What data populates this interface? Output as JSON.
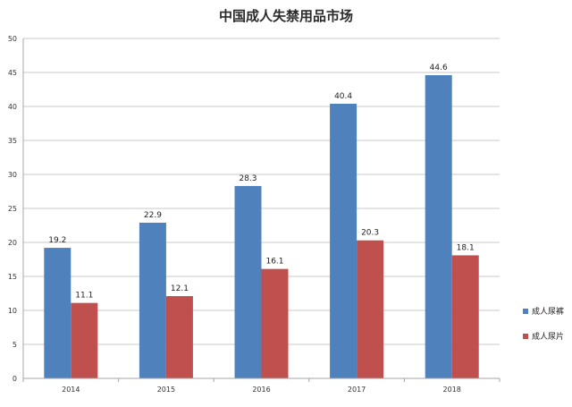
{
  "chart_data": {
    "type": "bar",
    "title": "中国成人失禁用品市场",
    "categories": [
      "2014",
      "2015",
      "2016",
      "2017",
      "2018"
    ],
    "series": [
      {
        "name": "成人尿裤",
        "color": "#4f81bd",
        "values": [
          19.2,
          22.9,
          28.3,
          40.4,
          44.6
        ],
        "labels": [
          "19.2",
          "22.9",
          "28.3",
          "40.4",
          "44.6"
        ]
      },
      {
        "name": "成人尿片",
        "color": "#c0504d",
        "values": [
          11.1,
          12.1,
          16.1,
          20.3,
          18.1
        ],
        "labels": [
          "11.1",
          "12.1",
          "16.1",
          "20.3",
          "18.1"
        ]
      }
    ],
    "ylim": [
      0,
      50
    ],
    "yticks": [
      "0",
      "5",
      "10",
      "15",
      "20",
      "25",
      "30",
      "35",
      "40",
      "45",
      "50"
    ],
    "xlabel": "",
    "ylabel": "",
    "grid": true,
    "legend": "right"
  }
}
